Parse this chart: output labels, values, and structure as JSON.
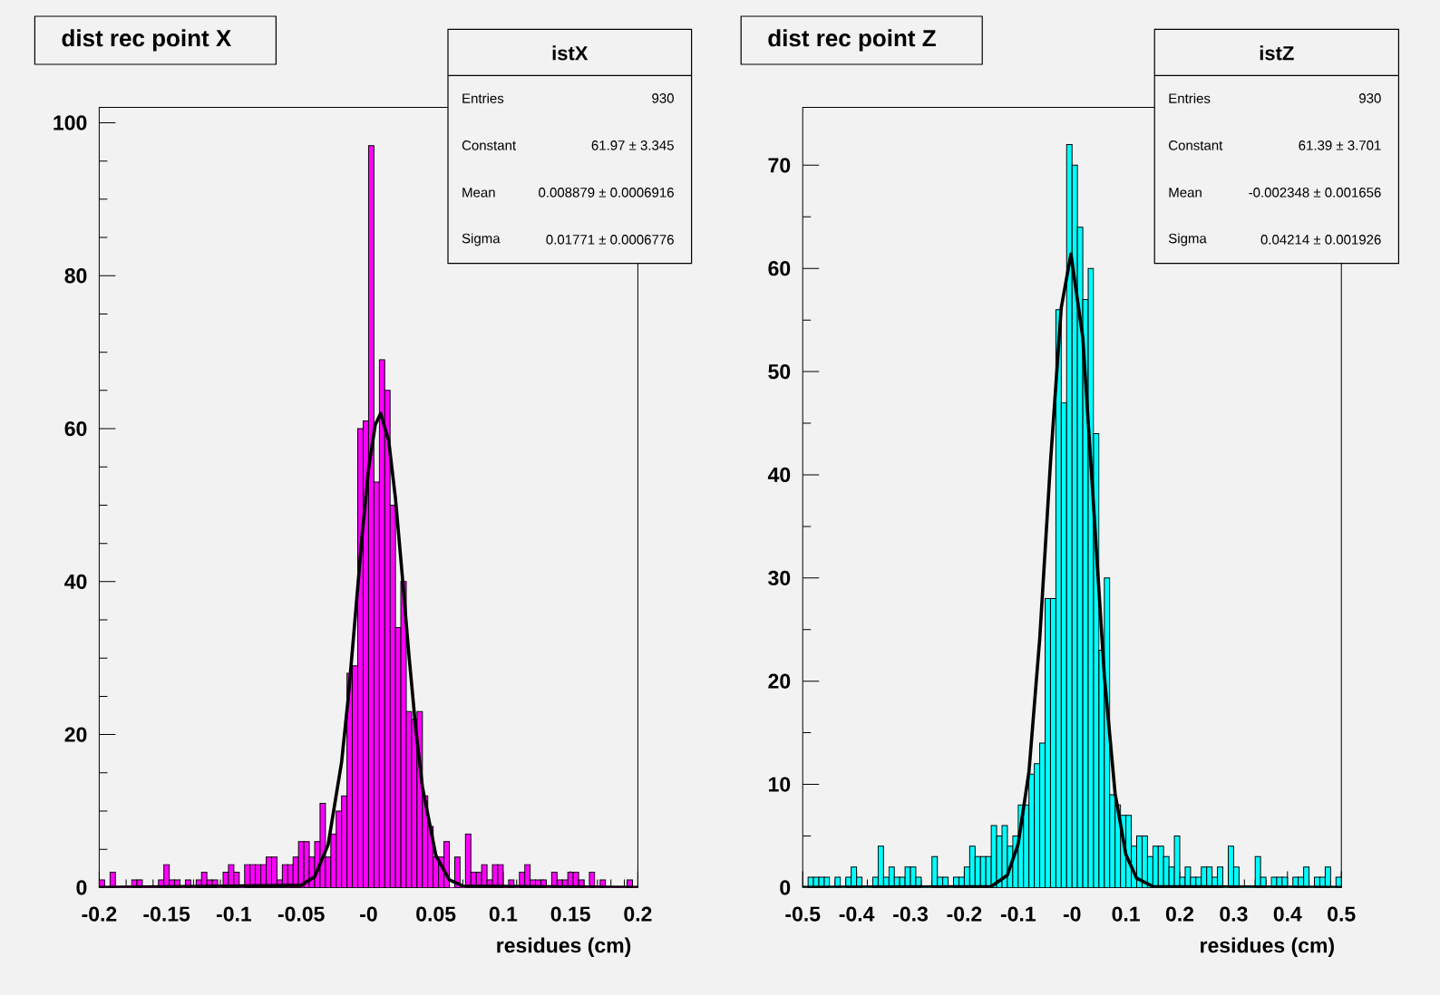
{
  "chart_data": [
    {
      "type": "histogram",
      "title": "dist rec point X",
      "xlabel": "residues (cm)",
      "bins": [
        -0.2,
        -0.196,
        -0.192,
        -0.188,
        -0.184,
        -0.18,
        -0.176,
        -0.172,
        -0.168,
        -0.164,
        -0.16,
        -0.156,
        -0.152,
        -0.148,
        -0.144,
        -0.14,
        -0.136,
        -0.132,
        -0.128,
        -0.124,
        -0.12,
        -0.116,
        -0.112,
        -0.108,
        -0.104,
        -0.1,
        -0.096,
        -0.092,
        -0.088,
        -0.084,
        -0.08,
        -0.076,
        -0.072,
        -0.068,
        -0.064,
        -0.06,
        -0.056,
        -0.052,
        -0.048,
        -0.044,
        -0.04,
        -0.036,
        -0.032,
        -0.028,
        -0.024,
        -0.02,
        -0.016,
        -0.012,
        -0.008,
        -0.004,
        0,
        0.004,
        0.008,
        0.012,
        0.016,
        0.02,
        0.024,
        0.028,
        0.032,
        0.036,
        0.04,
        0.044,
        0.048,
        0.052,
        0.056,
        0.06,
        0.064,
        0.068,
        0.072,
        0.076,
        0.08,
        0.084,
        0.088,
        0.092,
        0.096,
        0.1,
        0.104,
        0.108,
        0.112,
        0.116,
        0.12,
        0.124,
        0.128,
        0.132,
        0.136,
        0.14,
        0.144,
        0.148,
        0.152,
        0.156,
        0.16,
        0.164,
        0.168,
        0.172,
        0.176,
        0.18,
        0.184,
        0.188,
        0.192,
        0.196,
        0.2
      ],
      "xlim": [
        -0.2,
        0.2
      ],
      "ylim": [
        0,
        102
      ],
      "xticks": [
        -0.2,
        -0.15,
        -0.1,
        -0.05,
        {
          "value": 0,
          "label": "-0"
        },
        0.05,
        0.1,
        0.15,
        0.2
      ],
      "yticks": [
        0,
        20,
        40,
        60,
        80,
        100
      ],
      "annotations": [
        "istX",
        "Entries",
        "930",
        "Constant",
        "61.97 ± 3.345",
        "Mean",
        "0.008879 ± 0.0006916",
        "Sigma",
        "0.01771 ± 0.0006776"
      ],
      "series": [
        {
          "type": "histogram",
          "color": "#ff00ff",
          "values": [
            1,
            0,
            2,
            0,
            0,
            0,
            1,
            1,
            0,
            0,
            0,
            1,
            3,
            1,
            1,
            0,
            1,
            0,
            1,
            2,
            1,
            1,
            0,
            2,
            3,
            2,
            0,
            3,
            3,
            3,
            3,
            4,
            4,
            1,
            3,
            3,
            4,
            6,
            6,
            4,
            6,
            11,
            4,
            7,
            10,
            12,
            28,
            29,
            60,
            61,
            97,
            53,
            69,
            65,
            50,
            34,
            40,
            23,
            22,
            23,
            12,
            8,
            4,
            4,
            6,
            0,
            4,
            0,
            7,
            2,
            2,
            3,
            1,
            3,
            3,
            0,
            1,
            0,
            2,
            3,
            1,
            1,
            1,
            0,
            2,
            1,
            1,
            2,
            2,
            1,
            0,
            2,
            0,
            1,
            0,
            0,
            0,
            0,
            1,
            0
          ]
        },
        {
          "type": "line",
          "color": "#000000",
          "x": [
            -0.2,
            -0.05,
            -0.04,
            -0.03,
            -0.02,
            -0.015,
            -0.01,
            -0.005,
            0,
            0.005,
            0.009,
            0.015,
            0.02,
            0.025,
            0.03,
            0.035,
            0.04,
            0.05,
            0.06,
            0.07,
            0.2
          ],
          "values": [
            0,
            0.3,
            1.4,
            5.6,
            16.4,
            24.9,
            35.1,
            45.6,
            54.7,
            60.5,
            62,
            58.4,
            50.9,
            40.9,
            30.4,
            20.9,
            13.2,
            4.2,
            1,
            0.2,
            0
          ]
        }
      ]
    },
    {
      "type": "histogram",
      "title": "dist rec point Z",
      "xlabel": "residues (cm)",
      "bins": [
        -0.5,
        -0.49,
        -0.48,
        -0.47,
        -0.46,
        -0.45,
        -0.44,
        -0.43,
        -0.42,
        -0.41,
        -0.4,
        -0.39,
        -0.38,
        -0.37,
        -0.36,
        -0.35,
        -0.34,
        -0.33,
        -0.32,
        -0.31,
        -0.3,
        -0.29,
        -0.28,
        -0.27,
        -0.26,
        -0.25,
        -0.24,
        -0.23,
        -0.22,
        -0.21,
        -0.2,
        -0.19,
        -0.18,
        -0.17,
        -0.16,
        -0.15,
        -0.14,
        -0.13,
        -0.12,
        -0.11,
        -0.1,
        -0.09,
        -0.08,
        -0.07,
        -0.06,
        -0.05,
        -0.04,
        -0.03,
        -0.02,
        -0.01,
        0,
        0.01,
        0.02,
        0.03,
        0.04,
        0.05,
        0.06,
        0.07,
        0.08,
        0.09,
        0.1,
        0.11,
        0.12,
        0.13,
        0.14,
        0.15,
        0.16,
        0.17,
        0.18,
        0.19,
        0.2,
        0.21,
        0.22,
        0.23,
        0.24,
        0.25,
        0.26,
        0.27,
        0.28,
        0.29,
        0.3,
        0.31,
        0.32,
        0.33,
        0.34,
        0.35,
        0.36,
        0.37,
        0.38,
        0.39,
        0.4,
        0.41,
        0.42,
        0.43,
        0.44,
        0.45,
        0.46,
        0.47,
        0.48,
        0.49,
        0.5
      ],
      "xlim": [
        -0.5,
        0.5
      ],
      "ylim": [
        0,
        75.6
      ],
      "xticks": [
        -0.5,
        -0.4,
        -0.3,
        -0.2,
        -0.1,
        {
          "value": 0,
          "label": "-0"
        },
        0.1,
        0.2,
        0.3,
        0.4,
        0.5
      ],
      "yticks": [
        0,
        10,
        20,
        30,
        40,
        50,
        60,
        70
      ],
      "annotations": [
        "istZ",
        "Entries",
        "930",
        "Constant",
        "61.39 ± 3.701",
        "Mean",
        "-0.002348 ± 0.001656",
        "Sigma",
        "0.04214 ± 0.001926"
      ],
      "series": [
        {
          "type": "histogram",
          "color": "#00ffff",
          "values": [
            0,
            1,
            1,
            1,
            1,
            0,
            1,
            0,
            1,
            2,
            1,
            0,
            0,
            1,
            4,
            1,
            2,
            1,
            1,
            2,
            2,
            1,
            0,
            0,
            3,
            1,
            1,
            0,
            1,
            1,
            2,
            4,
            3,
            3,
            3,
            6,
            5,
            6,
            4,
            5,
            8,
            8,
            11,
            12,
            14,
            28,
            28,
            56,
            47,
            72,
            70,
            64,
            57,
            60,
            44,
            23,
            30,
            9,
            8,
            7,
            7,
            4,
            5,
            5,
            3,
            4,
            4,
            3,
            2,
            5,
            1,
            2,
            1,
            1,
            2,
            2,
            1,
            2,
            0,
            4,
            2,
            0,
            0,
            0,
            3,
            1,
            0,
            1,
            1,
            1,
            0,
            1,
            1,
            2,
            0,
            1,
            1,
            2,
            0,
            1
          ]
        },
        {
          "type": "line",
          "color": "#000000",
          "x": [
            -0.5,
            -0.15,
            -0.12,
            -0.1,
            -0.08,
            -0.06,
            -0.04,
            -0.02,
            -0.002,
            0.02,
            0.04,
            0.06,
            0.08,
            0.1,
            0.12,
            0.15,
            0.5
          ],
          "values": [
            0,
            0.1,
            1.2,
            4.2,
            11.2,
            24.1,
            41.2,
            56.2,
            61.4,
            53.3,
            37,
            20.5,
            9.1,
            3.2,
            0.9,
            0.1,
            0
          ]
        }
      ]
    }
  ]
}
